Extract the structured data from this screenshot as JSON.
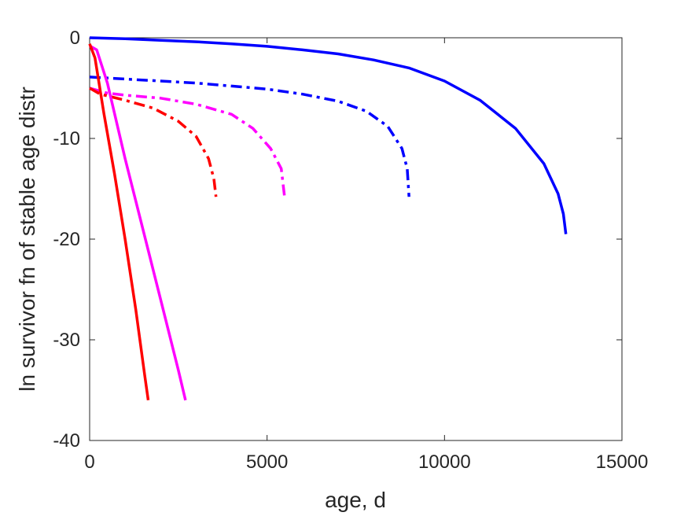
{
  "chart_data": {
    "type": "line",
    "xlabel": "age, d",
    "ylabel": "ln survivor fn of stable age distr",
    "xlim": [
      0,
      15000
    ],
    "ylim": [
      -40,
      0
    ],
    "xticks": [
      0,
      5000,
      10000,
      15000
    ],
    "yticks": [
      0,
      -10,
      -20,
      -30,
      -40
    ],
    "xtick_labels": [
      "0",
      "5000",
      "10000",
      "15000"
    ],
    "ytick_labels": [
      "0",
      "-10",
      "-20",
      "-30",
      "-40"
    ],
    "grid": false,
    "legend": "none",
    "series": [
      {
        "color": "#0000ff",
        "style": "solid",
        "points": [
          [
            0,
            0
          ],
          [
            1000,
            -0.1
          ],
          [
            2000,
            -0.25
          ],
          [
            3000,
            -0.4
          ],
          [
            4000,
            -0.6
          ],
          [
            5000,
            -0.85
          ],
          [
            6000,
            -1.2
          ],
          [
            7000,
            -1.6
          ],
          [
            8000,
            -2.2
          ],
          [
            9000,
            -3.0
          ],
          [
            10000,
            -4.3
          ],
          [
            11000,
            -6.2
          ],
          [
            12000,
            -9.0
          ],
          [
            12800,
            -12.5
          ],
          [
            13200,
            -15.5
          ],
          [
            13350,
            -17.5
          ],
          [
            13420,
            -19.5
          ]
        ]
      },
      {
        "color": "#0000ff",
        "style": "dashdot",
        "points": [
          [
            0,
            -3.9
          ],
          [
            1000,
            -4.1
          ],
          [
            2000,
            -4.3
          ],
          [
            3000,
            -4.5
          ],
          [
            4000,
            -4.8
          ],
          [
            5000,
            -5.1
          ],
          [
            6000,
            -5.6
          ],
          [
            7000,
            -6.3
          ],
          [
            7800,
            -7.3
          ],
          [
            8400,
            -8.8
          ],
          [
            8800,
            -11.0
          ],
          [
            8950,
            -13.0
          ],
          [
            9000,
            -15.8
          ]
        ]
      },
      {
        "color": "#ff00ff",
        "style": "dashdot",
        "points": [
          [
            0,
            -5.0
          ],
          [
            500,
            -5.5
          ],
          [
            1000,
            -5.7
          ],
          [
            2000,
            -6.0
          ],
          [
            3000,
            -6.6
          ],
          [
            4000,
            -7.6
          ],
          [
            4600,
            -9.0
          ],
          [
            5100,
            -11.0
          ],
          [
            5400,
            -13.0
          ],
          [
            5500,
            -16.0
          ]
        ]
      },
      {
        "color": "#ff0000",
        "style": "dashdot",
        "points": [
          [
            0,
            -5.0
          ],
          [
            300,
            -5.6
          ],
          [
            1000,
            -6.2
          ],
          [
            1800,
            -7.0
          ],
          [
            2500,
            -8.3
          ],
          [
            3000,
            -9.8
          ],
          [
            3350,
            -12.0
          ],
          [
            3500,
            -14.0
          ],
          [
            3560,
            -15.8
          ]
        ]
      },
      {
        "color": "#ff00ff",
        "style": "solid",
        "points": [
          [
            0,
            -0.8
          ],
          [
            200,
            -1.2
          ],
          [
            500,
            -4.5
          ],
          [
            1000,
            -12.0
          ],
          [
            1500,
            -19.0
          ],
          [
            2000,
            -26.0
          ],
          [
            2500,
            -33.0
          ],
          [
            2700,
            -36.0
          ]
        ]
      },
      {
        "color": "#ff0000",
        "style": "solid",
        "points": [
          [
            0,
            -0.6
          ],
          [
            150,
            -2.0
          ],
          [
            400,
            -7.5
          ],
          [
            700,
            -13.5
          ],
          [
            1000,
            -20.0
          ],
          [
            1300,
            -27.0
          ],
          [
            1550,
            -33.5
          ],
          [
            1650,
            -36.0
          ]
        ]
      }
    ]
  }
}
